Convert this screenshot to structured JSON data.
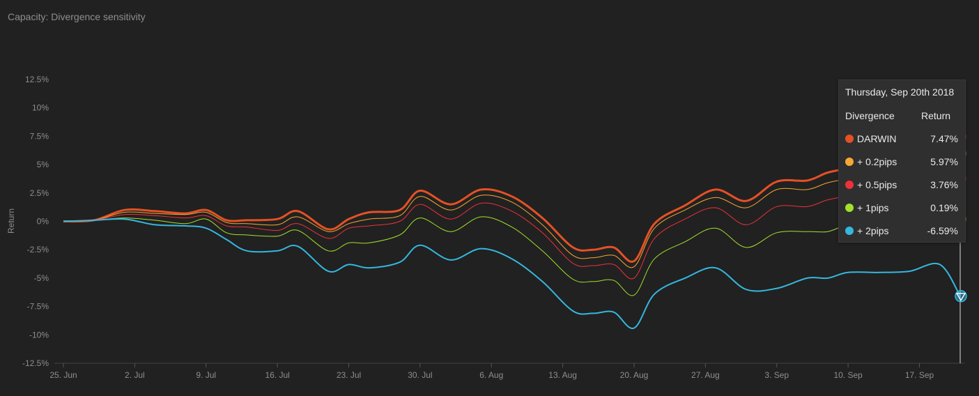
{
  "title": "Capacity: Divergence sensitivity",
  "chart_data": {
    "type": "line",
    "title": "Capacity: Divergence sensitivity",
    "ylabel": "Return",
    "xlabel": "",
    "x_tick_labels": [
      "25. Jun",
      "2. Jul",
      "9. Jul",
      "16. Jul",
      "23. Jul",
      "30. Jul",
      "6. Aug",
      "13. Aug",
      "20. Aug",
      "27. Aug",
      "3. Sep",
      "10. Sep",
      "17. Sep"
    ],
    "y_ticks": [
      -12.5,
      -10,
      -7.5,
      -5,
      -2.5,
      0,
      2.5,
      5,
      7.5,
      10,
      12.5
    ],
    "y_tick_labels": [
      "-12.5%",
      "-10%",
      "-7.5%",
      "-5%",
      "-2.5%",
      "0%",
      "2.5%",
      "5%",
      "7.5%",
      "10%",
      "12.5%"
    ],
    "ylim": [
      -12.5,
      12.5
    ],
    "x_range_days": [
      0,
      87
    ],
    "x_days": [
      0,
      3,
      6,
      9,
      12,
      14,
      16,
      18,
      21,
      23,
      26,
      28,
      30,
      33,
      35,
      38,
      41,
      44,
      47,
      50,
      52,
      54,
      56,
      58,
      61,
      64,
      67,
      70,
      73,
      75,
      77,
      80,
      83,
      86,
      88
    ],
    "series": [
      {
        "name": "DARWIN",
        "color": "#e55125",
        "width": 3,
        "values": [
          0,
          0.1,
          1.0,
          0.9,
          0.7,
          1.0,
          0.1,
          0.1,
          0.2,
          0.9,
          -0.7,
          0.2,
          0.8,
          1.0,
          2.7,
          1.5,
          2.8,
          2.2,
          0.3,
          -2.3,
          -2.5,
          -2.3,
          -3.5,
          -0.2,
          1.4,
          2.8,
          1.8,
          3.5,
          3.6,
          4.3,
          4.6,
          4.6,
          6.2,
          6.8,
          7.47
        ]
      },
      {
        "name": "+ 0.2pips",
        "color": "#f7a832",
        "width": 1,
        "values": [
          0,
          0.1,
          0.8,
          0.7,
          0.6,
          0.8,
          -0.1,
          -0.2,
          -0.3,
          0.4,
          -0.9,
          -0.2,
          0.2,
          0.5,
          2.2,
          1.0,
          2.3,
          1.7,
          -0.3,
          -3.0,
          -3.2,
          -3.0,
          -4.0,
          -0.6,
          1.0,
          2.1,
          1.2,
          2.8,
          2.8,
          3.4,
          3.7,
          3.7,
          5.0,
          5.5,
          5.97
        ]
      },
      {
        "name": "+ 0.5pips",
        "color": "#f0303a",
        "width": 1,
        "values": [
          0,
          0.1,
          0.6,
          0.5,
          0.3,
          0.5,
          -0.4,
          -0.5,
          -0.8,
          -0.2,
          -1.5,
          -0.6,
          -0.4,
          0,
          1.5,
          0.2,
          1.6,
          0.9,
          -1.0,
          -3.7,
          -3.9,
          -3.8,
          -5.0,
          -1.5,
          0.2,
          1.2,
          -0.3,
          1.3,
          1.3,
          1.9,
          2.2,
          2.3,
          3.4,
          3.5,
          3.76
        ]
      },
      {
        "name": "+ 1pips",
        "color": "#a2e22c",
        "width": 1,
        "values": [
          0,
          0.1,
          0.3,
          0.1,
          -0.2,
          0.2,
          -1.0,
          -1.2,
          -1.3,
          -0.8,
          -2.6,
          -1.9,
          -1.9,
          -1.2,
          0.3,
          -0.9,
          0.4,
          -0.5,
          -2.6,
          -5.1,
          -5.3,
          -5.2,
          -6.5,
          -3.3,
          -1.8,
          -0.6,
          -2.3,
          -1.0,
          -0.9,
          -0.9,
          -0.3,
          0,
          0.7,
          0.8,
          0.19
        ]
      },
      {
        "name": "+ 2pips",
        "color": "#35b8e0",
        "width": 2,
        "values": [
          0,
          0.1,
          0.2,
          -0.3,
          -0.4,
          -0.6,
          -1.6,
          -2.6,
          -2.6,
          -2.2,
          -4.4,
          -3.8,
          -4.1,
          -3.6,
          -2.1,
          -3.4,
          -2.4,
          -3.3,
          -5.3,
          -7.9,
          -8.1,
          -8.0,
          -9.4,
          -6.4,
          -5.0,
          -4.1,
          -6.0,
          -5.9,
          -5.0,
          -5.0,
          -4.5,
          -4.5,
          -4.4,
          -3.8,
          -6.59
        ]
      }
    ],
    "crosshair_day": 88,
    "grid": false,
    "legend": "none"
  },
  "tooltip": {
    "date": "Thursday, Sep 20th 2018",
    "col_divergence": "Divergence",
    "col_return": "Return",
    "rows": [
      {
        "label": "DARWIN",
        "value": "7.47%",
        "color": "#e55125"
      },
      {
        "label": "+ 0.2pips",
        "value": "5.97%",
        "color": "#f7a832"
      },
      {
        "label": "+ 0.5pips",
        "value": "3.76%",
        "color": "#f0303a"
      },
      {
        "label": "+ 1pips",
        "value": "0.19%",
        "color": "#a2e22c"
      },
      {
        "label": "+ 2pips",
        "value": "-6.59%",
        "color": "#35b8e0"
      }
    ]
  }
}
